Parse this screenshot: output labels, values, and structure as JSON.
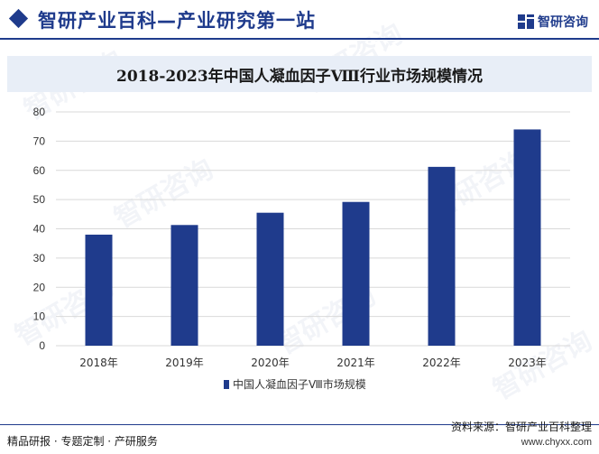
{
  "header": {
    "site_title": "智研产业百科—产业研究第一站",
    "brand_name": "智研咨询"
  },
  "colors": {
    "brand": "#1f3b8c",
    "bar": "#1f3b8c",
    "title_band": "#e8eef7"
  },
  "chart_data": {
    "type": "bar",
    "title": "2018-2023年中国人凝血因子Ⅷ行业市场规模情况",
    "categories": [
      "2018年",
      "2019年",
      "2020年",
      "2021年",
      "2022年",
      "2023年"
    ],
    "series": [
      {
        "name": "中国人凝血因子Ⅷ市场规模",
        "values": [
          38,
          41.3,
          45.5,
          49.2,
          61.2,
          74
        ],
        "color": "#1f3b8c"
      }
    ],
    "ylim": [
      0,
      80
    ],
    "yticks": [
      0,
      10,
      20,
      30,
      40,
      50,
      60,
      70,
      80
    ],
    "grid": true,
    "legend": "bottom",
    "xlabel": "",
    "ylabel": ""
  },
  "footer": {
    "tagline": "精品研报 · 专题定制 · 产研服务",
    "source": "资料来源：智研产业百科整理",
    "url": "www.chyxx.com"
  },
  "watermark": {
    "text": "智研咨询"
  }
}
